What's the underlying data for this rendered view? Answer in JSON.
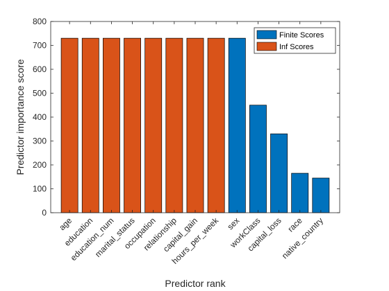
{
  "chart_data": {
    "type": "bar",
    "xlabel": "Predictor rank",
    "ylabel": "Predictor importance score",
    "ylim": [
      0,
      800
    ],
    "yticks": [
      0,
      100,
      200,
      300,
      400,
      500,
      600,
      700,
      800
    ],
    "grid": false,
    "legend_position": "top-right",
    "categories": [
      "age",
      "education",
      "education_num",
      "marital_status",
      "occupation",
      "relationship",
      "capital_gain",
      "hours_per_week",
      "sex",
      "workClass",
      "capital_loss",
      "race",
      "native_country"
    ],
    "series": [
      {
        "name": "Finite Scores",
        "color": "#0072BD",
        "values": [
          null,
          null,
          null,
          null,
          null,
          null,
          null,
          null,
          730,
          450,
          330,
          165,
          145
        ]
      },
      {
        "name": "Inf Scores",
        "color": "#D95319",
        "values": [
          730,
          730,
          730,
          730,
          730,
          730,
          730,
          730,
          null,
          null,
          null,
          null,
          null
        ]
      }
    ]
  }
}
